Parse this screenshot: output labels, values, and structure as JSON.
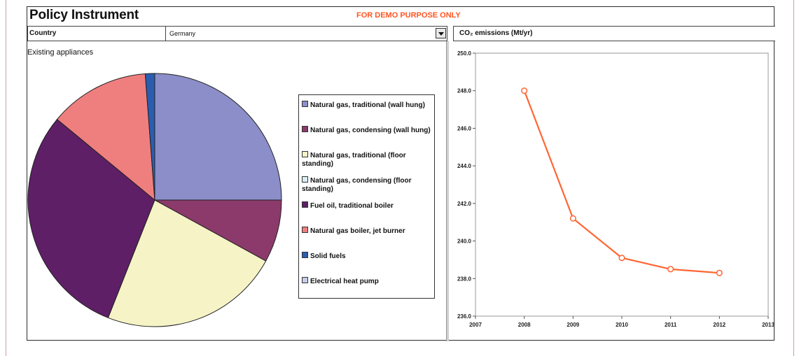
{
  "header": {
    "title": "Policy Instrument",
    "demo_notice": "FOR DEMO PURPOSE ONLY",
    "demo_color": "#ff5522"
  },
  "controls": {
    "country_label": "Country",
    "country_value": "Germany",
    "co2_label": "CO₂ emissions (Mt/yr)"
  },
  "pie_panel": {
    "title": "Existing appliances"
  },
  "legend": {
    "items": [
      {
        "label": "Natural gas, traditional (wall hung)",
        "color": "#8b8ec8"
      },
      {
        "label": "Natural gas, condensing (wall hung)",
        "color": "#8b3a6b"
      },
      {
        "label": "Natural gas, traditional (floor standing)",
        "color": "#f6f4c6"
      },
      {
        "label": "Natural gas, condensing (floor standing)",
        "color": "#d9eef4"
      },
      {
        "label": "Fuel oil,  traditional boiler",
        "color": "#5e1f66"
      },
      {
        "label": "Natural gas boiler, jet burner",
        "color": "#ef7f7f"
      },
      {
        "label": "Solid fuels",
        "color": "#2a5db0"
      },
      {
        "label": "Electrical heat pump",
        "color": "#c8ccec"
      }
    ]
  },
  "chart_data": [
    {
      "type": "pie",
      "title": "Existing appliances",
      "series": [
        {
          "name": "Natural gas, traditional (wall hung)",
          "value": 25.0,
          "color": "#8b8ec8"
        },
        {
          "name": "Natural gas, condensing (wall hung)",
          "value": 8.0,
          "color": "#8b3a6b"
        },
        {
          "name": "Natural gas, traditional (floor standing)",
          "value": 23.0,
          "color": "#f6f4c6"
        },
        {
          "name": "Fuel oil,  traditional boiler",
          "value": 30.0,
          "color": "#5e1f66"
        },
        {
          "name": "Natural gas boiler, jet burner",
          "value": 12.8,
          "color": "#ef7f7f"
        },
        {
          "name": "Solid fuels",
          "value": 1.2,
          "color": "#2a5db0"
        }
      ],
      "legend_placement": "right"
    },
    {
      "type": "line",
      "title": "CO₂ emissions (Mt/yr)",
      "x": [
        2008,
        2009,
        2010,
        2011,
        2012
      ],
      "series": [
        {
          "values": [
            248.0,
            241.2,
            239.1,
            238.5,
            238.3
          ],
          "color": "#ff6633"
        }
      ],
      "xlim": [
        2007,
        2013
      ],
      "ylim": [
        236.0,
        250.0
      ],
      "x_ticks": [
        "2007",
        "2008",
        "2009",
        "2010",
        "2011",
        "2012",
        "2013"
      ],
      "y_ticks": [
        "236.0",
        "238.0",
        "240.0",
        "242.0",
        "244.0",
        "246.0",
        "248.0",
        "250.0"
      ],
      "grid": false
    }
  ]
}
